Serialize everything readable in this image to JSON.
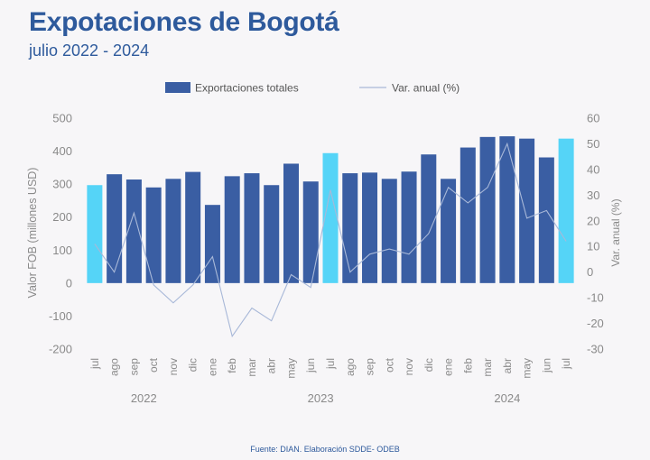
{
  "header": {
    "title": "Expotaciones de Bogotá",
    "subtitle": "julio 2022 - 2024"
  },
  "footer": {
    "source": "Fuente: DIAN. Elaboración SDDE- ODEB"
  },
  "colors": {
    "bar": "#3a5ea3",
    "bar_highlight": "#55d4f7",
    "line": "#a8b8d8",
    "axis_text": "#8a8a8a",
    "title": "#2e5a9c"
  },
  "chart_data": {
    "type": "bar",
    "categories": [
      "jul",
      "ago",
      "sep",
      "oct",
      "nov",
      "dic",
      "ene",
      "feb",
      "mar",
      "abr",
      "may",
      "jun",
      "jul",
      "ago",
      "sep",
      "oct",
      "nov",
      "dic",
      "ene",
      "feb",
      "mar",
      "abr",
      "may",
      "jun",
      "jul"
    ],
    "year_labels": [
      {
        "label": "2022",
        "from": 0,
        "to": 5
      },
      {
        "label": "2023",
        "from": 6,
        "to": 17
      },
      {
        "label": "2024",
        "from": 18,
        "to": 24
      }
    ],
    "highlight_indices": [
      0,
      12,
      24
    ],
    "series": [
      {
        "name": "Exportaciones totales",
        "type": "bar",
        "axis": "left",
        "values": [
          297,
          330,
          314,
          290,
          316,
          337,
          237,
          324,
          333,
          297,
          362,
          308,
          394,
          333,
          335,
          316,
          338,
          390,
          316,
          411,
          443,
          445,
          438,
          381,
          438
        ]
      },
      {
        "name": "Var. anual (%)",
        "type": "line",
        "axis": "right",
        "values": [
          11,
          0,
          23,
          -5,
          -12,
          -5,
          6,
          -25,
          -14,
          -19,
          -1,
          -6,
          32,
          0,
          7,
          9,
          7,
          15,
          33,
          27,
          33,
          50,
          21,
          24,
          12
        ]
      }
    ],
    "ylabel": "Valor FOB (millones USD)",
    "ylabel_right": "Var. anual (%)",
    "ylim": [
      -200,
      500
    ],
    "ylim_right": [
      -30,
      60
    ],
    "yticks": [
      -200,
      -100,
      0,
      100,
      200,
      300,
      400,
      500
    ],
    "yticks_right": [
      -30,
      -20,
      -10,
      0,
      10,
      20,
      30,
      40,
      50,
      60
    ],
    "grid": false,
    "legend": "top-center"
  }
}
